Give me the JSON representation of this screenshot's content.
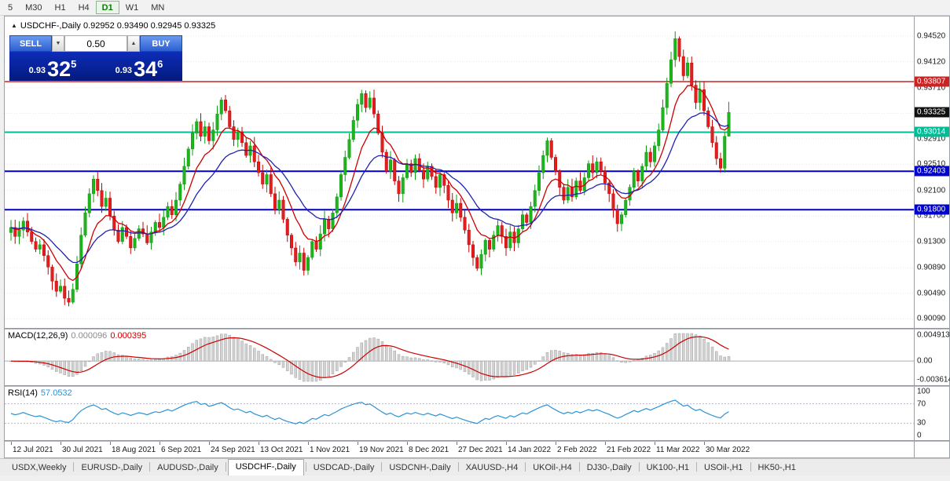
{
  "toolbar": {
    "timeframes": [
      "5",
      "M30",
      "H1",
      "H4",
      "D1",
      "W1",
      "MN"
    ],
    "active": "D1"
  },
  "trade_panel": {
    "sell_label": "SELL",
    "buy_label": "BUY",
    "volume": "0.50",
    "sell_price_small": "0.93",
    "sell_price_big": "32",
    "sell_price_sup": "5",
    "buy_price_small": "0.93",
    "buy_price_big": "34",
    "buy_price_sup": "6"
  },
  "chart_data": {
    "type": "candlestick",
    "symbol": "USDCHF-",
    "timeframe": "Daily",
    "title_line": "USDCHF-,Daily 0.92952 0.93490 0.92945 0.93325",
    "ohlc_display": {
      "open": "0.92952",
      "high": "0.93490",
      "low": "0.92945",
      "close": "0.93325"
    },
    "last_ohlc": [
      0.92952,
      0.9349,
      0.92945,
      0.93325
    ],
    "price_range": [
      0.89945,
      0.94828
    ],
    "grid_prices": [
      0.9452,
      0.9412,
      0.9371,
      0.9331,
      0.9291,
      0.9251,
      0.921,
      0.917,
      0.913,
      0.9089,
      0.9049,
      0.9009
    ],
    "h_lines": [
      {
        "value": 0.93807,
        "color": "#cc2222",
        "width": 1.4,
        "label": "0.93807"
      },
      {
        "value": 0.93014,
        "color": "#00bc96",
        "width": 2,
        "label": "0.93014"
      },
      {
        "value": 0.92403,
        "color": "#0000cc",
        "width": 2,
        "label": "0.92403"
      },
      {
        "value": 0.918,
        "color": "#0000cc",
        "width": 2,
        "label": "0.91800"
      }
    ],
    "current_price": {
      "value": 0.93325,
      "label": "0.93325",
      "color": "#111111"
    },
    "x_labels": [
      "12 Jul 2021",
      "30 Jul 2021",
      "18 Aug 2021",
      "6 Sep 2021",
      "24 Sep 2021",
      "13 Oct 2021",
      "1 Nov 2021",
      "19 Nov 2021",
      "8 Dec 2021",
      "27 Dec 2021",
      "14 Jan 2022",
      "2 Feb 2022",
      "21 Feb 2022",
      "11 Mar 2022",
      "30 Mar 2022"
    ],
    "moving_averages": [
      {
        "period": 9,
        "color": "#cc0000"
      },
      {
        "period": 20,
        "color": "#2121b2"
      }
    ],
    "closes": [
      0.9152,
      0.9138,
      0.9148,
      0.9162,
      0.9145,
      0.913,
      0.9118,
      0.9125,
      0.9108,
      0.909,
      0.9068,
      0.9052,
      0.906,
      0.9041,
      0.9035,
      0.9055,
      0.9095,
      0.914,
      0.9175,
      0.9205,
      0.9228,
      0.921,
      0.9185,
      0.9198,
      0.917,
      0.9148,
      0.913,
      0.9152,
      0.9138,
      0.912,
      0.9135,
      0.915,
      0.9142,
      0.9128,
      0.9145,
      0.916,
      0.9152,
      0.9168,
      0.9185,
      0.9172,
      0.9195,
      0.922,
      0.9248,
      0.9275,
      0.93,
      0.9318,
      0.9295,
      0.931,
      0.9288,
      0.9305,
      0.933,
      0.9352,
      0.9335,
      0.931,
      0.929,
      0.9302,
      0.9285,
      0.9265,
      0.928,
      0.9255,
      0.9238,
      0.922,
      0.9235,
      0.9205,
      0.918,
      0.9195,
      0.9165,
      0.914,
      0.912,
      0.9098,
      0.9112,
      0.9085,
      0.9105,
      0.913,
      0.9118,
      0.9142,
      0.9165,
      0.915,
      0.9175,
      0.92,
      0.9235,
      0.9262,
      0.929,
      0.932,
      0.9345,
      0.9362,
      0.934,
      0.9355,
      0.933,
      0.93,
      0.927,
      0.924,
      0.9258,
      0.9225,
      0.9205,
      0.923,
      0.9252,
      0.9238,
      0.926,
      0.9242,
      0.9228,
      0.9248,
      0.9232,
      0.9215,
      0.9235,
      0.9218,
      0.9195,
      0.9175,
      0.919,
      0.9168,
      0.9148,
      0.9125,
      0.9105,
      0.9088,
      0.911,
      0.9132,
      0.9118,
      0.914,
      0.9155,
      0.9138,
      0.912,
      0.9145,
      0.9128,
      0.915,
      0.9172,
      0.916,
      0.9185,
      0.921,
      0.9238,
      0.9265,
      0.9288,
      0.9262,
      0.924,
      0.9215,
      0.9195,
      0.9215,
      0.92,
      0.9225,
      0.921,
      0.923,
      0.9252,
      0.9238,
      0.9255,
      0.924,
      0.9222,
      0.9205,
      0.918,
      0.9158,
      0.9172,
      0.9195,
      0.9215,
      0.924,
      0.9225,
      0.9248,
      0.927,
      0.9255,
      0.928,
      0.9305,
      0.934,
      0.9378,
      0.9415,
      0.9448,
      0.942,
      0.939,
      0.941,
      0.9375,
      0.9348,
      0.9368,
      0.9335,
      0.931,
      0.9285,
      0.926,
      0.9245,
      0.9295,
      0.93325
    ],
    "macd": {
      "label": "MACD(12,26,9)",
      "value_main": "0.000096",
      "value_signal": "0.000395",
      "params": [
        12,
        26,
        9
      ],
      "range": [
        -0.003614,
        0.004913
      ],
      "axis": [
        "0.004913",
        "0.00",
        "-0.003614"
      ]
    },
    "rsi": {
      "label": "RSI(14)",
      "value": "57.0532",
      "period": 14,
      "levels": [
        70,
        30
      ],
      "axis": [
        "100",
        "70",
        "30",
        "0"
      ]
    }
  },
  "bottom_tabs": {
    "items": [
      "USDX,Weekly",
      "EURUSD-,Daily",
      "AUDUSD-,Daily",
      "USDCHF-,Daily",
      "USDCAD-,Daily",
      "USDCNH-,Daily",
      "XAUUSD-,H4",
      "UKOil-,H4",
      "DJ30-,Daily",
      "UK100-,H1",
      "USOil-,H1",
      "HK50-,H1"
    ],
    "active": "USDCHF-,Daily"
  }
}
